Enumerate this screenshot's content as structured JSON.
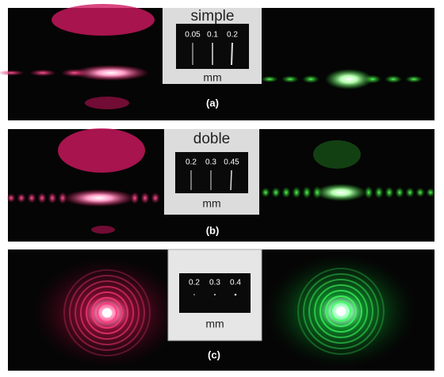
{
  "panels": [
    {
      "label": "(a)",
      "slide": {
        "title": "simple",
        "values": [
          "0.05",
          "0.1",
          "0.2"
        ],
        "unit": "mm"
      }
    },
    {
      "label": "(b)",
      "slide": {
        "title": "doble",
        "values": [
          "0.2",
          "0.3",
          "0.45"
        ],
        "unit": "mm"
      }
    },
    {
      "label": "(c)",
      "slide": {
        "values": [
          "0.2",
          "0.3",
          "0.4"
        ],
        "unit": "mm"
      }
    }
  ]
}
